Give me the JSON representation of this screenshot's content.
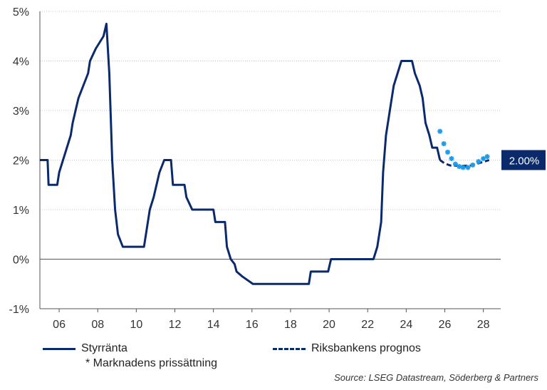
{
  "chart_data": {
    "type": "line",
    "y_ticks": [
      "5%",
      "4%",
      "3%",
      "2%",
      "1%",
      "0%",
      "-1%"
    ],
    "y_tick_values": [
      5,
      4,
      3,
      2,
      1,
      0,
      -1
    ],
    "x_ticks": [
      "06",
      "08",
      "10",
      "12",
      "14",
      "16",
      "18",
      "20",
      "22",
      "24",
      "26",
      "28"
    ],
    "x_tick_values": [
      2006,
      2008,
      2010,
      2012,
      2014,
      2016,
      2018,
      2020,
      2022,
      2024,
      2026,
      2028
    ],
    "xlim": [
      2005.0,
      2028.9
    ],
    "ylim": [
      -1,
      5
    ],
    "grid": "horizontal dotted",
    "colors": {
      "policy_rate": "#0b2a6b",
      "forecast": "#0b2a6b",
      "market": "#1f9be8",
      "badge": "#0b2a6b"
    },
    "series": [
      {
        "name": "Styrränta",
        "style": "solid",
        "points": [
          [
            2005.0,
            2.0
          ],
          [
            2005.4,
            2.0
          ],
          [
            2005.45,
            1.5
          ],
          [
            2005.9,
            1.5
          ],
          [
            2006.0,
            1.75
          ],
          [
            2006.2,
            2.0
          ],
          [
            2006.4,
            2.25
          ],
          [
            2006.6,
            2.5
          ],
          [
            2006.7,
            2.75
          ],
          [
            2006.85,
            3.0
          ],
          [
            2007.0,
            3.25
          ],
          [
            2007.25,
            3.5
          ],
          [
            2007.5,
            3.75
          ],
          [
            2007.6,
            4.0
          ],
          [
            2007.9,
            4.25
          ],
          [
            2008.3,
            4.5
          ],
          [
            2008.45,
            4.75
          ],
          [
            2008.6,
            3.75
          ],
          [
            2008.75,
            2.0
          ],
          [
            2008.9,
            1.0
          ],
          [
            2009.05,
            0.5
          ],
          [
            2009.3,
            0.25
          ],
          [
            2010.4,
            0.25
          ],
          [
            2010.5,
            0.5
          ],
          [
            2010.7,
            1.0
          ],
          [
            2010.9,
            1.25
          ],
          [
            2011.05,
            1.5
          ],
          [
            2011.2,
            1.75
          ],
          [
            2011.45,
            2.0
          ],
          [
            2011.8,
            2.0
          ],
          [
            2011.9,
            1.5
          ],
          [
            2012.5,
            1.5
          ],
          [
            2012.6,
            1.25
          ],
          [
            2012.9,
            1.0
          ],
          [
            2014.0,
            1.0
          ],
          [
            2014.1,
            0.75
          ],
          [
            2014.6,
            0.75
          ],
          [
            2014.7,
            0.25
          ],
          [
            2014.9,
            0.0
          ],
          [
            2015.1,
            -0.1
          ],
          [
            2015.2,
            -0.25
          ],
          [
            2015.5,
            -0.35
          ],
          [
            2016.05,
            -0.5
          ],
          [
            2018.95,
            -0.5
          ],
          [
            2019.05,
            -0.25
          ],
          [
            2019.95,
            -0.25
          ],
          [
            2020.1,
            0.0
          ],
          [
            2022.3,
            0.0
          ],
          [
            2022.5,
            0.25
          ],
          [
            2022.7,
            0.75
          ],
          [
            2022.8,
            1.75
          ],
          [
            2022.95,
            2.5
          ],
          [
            2023.15,
            3.0
          ],
          [
            2023.35,
            3.5
          ],
          [
            2023.55,
            3.75
          ],
          [
            2023.75,
            4.0
          ],
          [
            2024.3,
            4.0
          ],
          [
            2024.45,
            3.75
          ],
          [
            2024.7,
            3.5
          ],
          [
            2024.85,
            3.25
          ],
          [
            2025.0,
            2.75
          ],
          [
            2025.2,
            2.5
          ],
          [
            2025.35,
            2.25
          ],
          [
            2025.6,
            2.25
          ],
          [
            2025.75,
            2.0
          ]
        ]
      },
      {
        "name": "Riksbankens prognos",
        "style": "dashed",
        "points": [
          [
            2025.75,
            2.0
          ],
          [
            2026.0,
            1.93
          ],
          [
            2026.3,
            1.89
          ],
          [
            2026.8,
            1.88
          ],
          [
            2027.3,
            1.89
          ],
          [
            2027.8,
            1.94
          ],
          [
            2028.3,
            2.0
          ]
        ]
      },
      {
        "name": "* Marknadens prissättning",
        "style": "markers",
        "marker": "*",
        "points": [
          [
            2025.75,
            2.58
          ],
          [
            2025.95,
            2.33
          ],
          [
            2026.15,
            2.16
          ],
          [
            2026.35,
            2.03
          ],
          [
            2026.55,
            1.92
          ],
          [
            2026.75,
            1.87
          ],
          [
            2026.95,
            1.85
          ],
          [
            2027.2,
            1.85
          ],
          [
            2027.45,
            1.9
          ],
          [
            2027.75,
            1.97
          ],
          [
            2028.0,
            2.03
          ],
          [
            2028.2,
            2.07
          ]
        ]
      }
    ],
    "end_label": {
      "text": "2.00%",
      "value": 2.0
    }
  },
  "legend": {
    "policy_rate": "Styrränta",
    "forecast": "Riksbankens prognos",
    "market": "* Marknadens prissättning"
  },
  "source": "Source: LSEG Datastream, Söderberg & Partners"
}
